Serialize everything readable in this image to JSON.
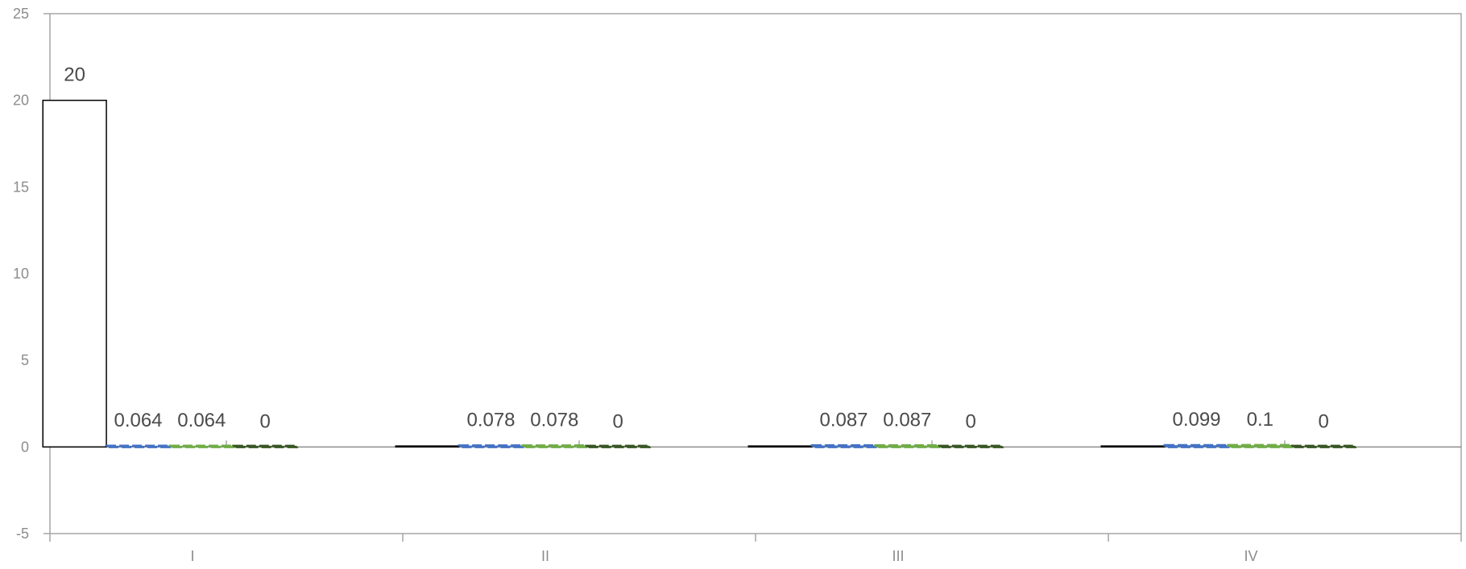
{
  "chart_data": {
    "type": "bar",
    "categories": [
      "I",
      "II",
      "III",
      "IV"
    ],
    "ylim": [
      -5,
      25
    ],
    "yticks": [
      -5,
      0,
      5,
      10,
      15,
      20,
      25
    ],
    "grid": false,
    "legend": "none",
    "series": [
      {
        "values": [
          20,
          0,
          0,
          0
        ],
        "labels": [
          "20",
          "",
          "",
          ""
        ],
        "color": "#ffffff",
        "stroke": "#000000",
        "style": "solid"
      },
      {
        "values": [
          0.064,
          0.078,
          0.087,
          0.099
        ],
        "labels": [
          "0.064",
          "0.078",
          "0.087",
          "0.099"
        ],
        "color": "#4472c4",
        "stroke": "#4472c4",
        "style": "dashed"
      },
      {
        "values": [
          0.064,
          0.078,
          0.087,
          0.1
        ],
        "labels": [
          "0.064",
          "0.078",
          "0.087",
          "0.1"
        ],
        "color": "#70ad47",
        "stroke": "#70ad47",
        "style": "dashed"
      },
      {
        "values": [
          0,
          0,
          0,
          0
        ],
        "labels": [
          "0",
          "0",
          "0",
          "0"
        ],
        "color": "#375623",
        "stroke": "#375623",
        "style": "dashed"
      }
    ]
  }
}
